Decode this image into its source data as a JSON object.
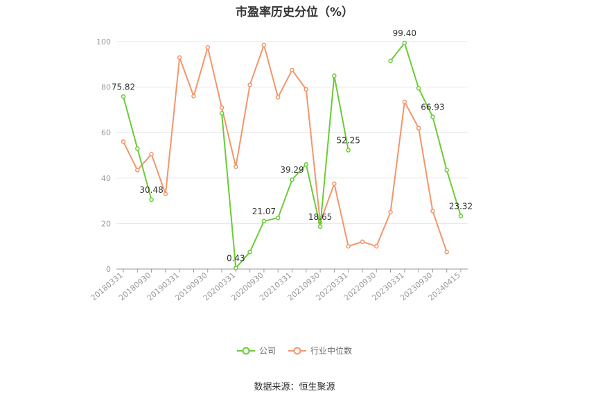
{
  "chart_data": {
    "type": "line",
    "title": "市盈率历史分位（%）",
    "ylim": [
      0,
      100
    ],
    "yticks": [
      0,
      20,
      40,
      60,
      80,
      100
    ],
    "grid": true,
    "legend_position": "bottom",
    "x": [
      "20180331",
      "20180630",
      "20180930",
      "20181231",
      "20190331",
      "20190630",
      "20190930",
      "20191231",
      "20200331",
      "20200630",
      "20200930",
      "20201231",
      "20210331",
      "20210630",
      "20210930",
      "20211231",
      "20220331",
      "20220630",
      "20220930",
      "20221231",
      "20230331",
      "20230630",
      "20230930",
      "20231231",
      "20240415"
    ],
    "xtick_labels": [
      "20180331",
      "20180930",
      "20190331",
      "20190930",
      "20200331",
      "20200930",
      "20210331",
      "20210930",
      "20220331",
      "20220930",
      "20230331",
      "20230930",
      "20240415"
    ],
    "series": [
      {
        "name": "公司",
        "color": "#6acc36",
        "values": [
          75.82,
          53,
          30.48,
          null,
          null,
          null,
          null,
          68.5,
          0.43,
          7.5,
          21.07,
          22.5,
          39.29,
          46,
          18.65,
          85,
          52.25,
          null,
          null,
          91.5,
          99.4,
          79.5,
          66.93,
          43.5,
          23.32
        ]
      },
      {
        "name": "行业中位数",
        "color": "#f4956a",
        "values": [
          56,
          43.5,
          50.5,
          33,
          93,
          76,
          97.5,
          71,
          45,
          81,
          98.5,
          75.5,
          87.5,
          79,
          20.5,
          37.5,
          10,
          12,
          10,
          25,
          73.5,
          62,
          25.5,
          7.5,
          null
        ]
      }
    ],
    "data_labels": [
      {
        "series": 0,
        "index": 0,
        "text": "75.82"
      },
      {
        "series": 0,
        "index": 2,
        "text": "30.48"
      },
      {
        "series": 0,
        "index": 8,
        "text": "0.43"
      },
      {
        "series": 0,
        "index": 10,
        "text": "21.07"
      },
      {
        "series": 0,
        "index": 12,
        "text": "39.29"
      },
      {
        "series": 0,
        "index": 14,
        "text": "18.65"
      },
      {
        "series": 0,
        "index": 16,
        "text": "52.25"
      },
      {
        "series": 0,
        "index": 20,
        "text": "99.40"
      },
      {
        "series": 0,
        "index": 22,
        "text": "66.93"
      },
      {
        "series": 0,
        "index": 24,
        "text": "23.32"
      }
    ]
  },
  "legend": {
    "company_label": "公司",
    "industry_label": "行业中位数"
  },
  "source_text": "数据来源：恒生聚源"
}
